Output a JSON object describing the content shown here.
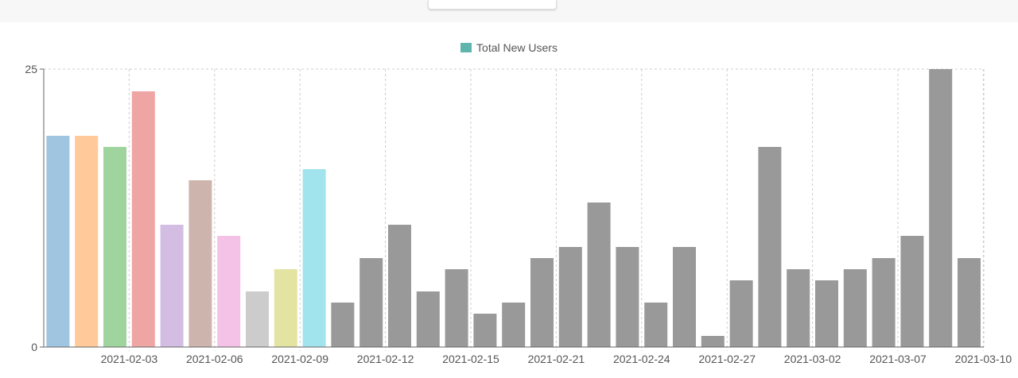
{
  "chart_data": {
    "type": "bar",
    "legend": {
      "label": "Total New Users",
      "color": "#5fb4ae",
      "placement": "top-center"
    },
    "ylim": [
      0,
      25
    ],
    "y_ticks": [
      "0",
      "25"
    ],
    "grid": true,
    "x_tick_labels": [
      "2021-02-03",
      "2021-02-06",
      "2021-02-09",
      "2021-02-12",
      "2021-02-15",
      "2021-02-21",
      "2021-02-24",
      "2021-02-27",
      "2021-03-02",
      "2021-03-07",
      "2021-03-10"
    ],
    "bars": [
      {
        "value": 19,
        "color": "#9fc5e0"
      },
      {
        "value": 19,
        "color": "#ffc999"
      },
      {
        "value": 18,
        "color": "#9fd49f"
      },
      {
        "value": 23,
        "color": "#f0a5a5"
      },
      {
        "value": 11,
        "color": "#d3bde3"
      },
      {
        "value": 15,
        "color": "#cdb5ae"
      },
      {
        "value": 10,
        "color": "#f4c2e6"
      },
      {
        "value": 5,
        "color": "#cccccc"
      },
      {
        "value": 7,
        "color": "#e4e4a2"
      },
      {
        "value": 16,
        "color": "#a1e4ed"
      },
      {
        "value": 4,
        "color": "#999999"
      },
      {
        "value": 8,
        "color": "#999999"
      },
      {
        "value": 11,
        "color": "#999999"
      },
      {
        "value": 5,
        "color": "#999999"
      },
      {
        "value": 7,
        "color": "#999999"
      },
      {
        "value": 3,
        "color": "#999999"
      },
      {
        "value": 4,
        "color": "#999999"
      },
      {
        "value": 8,
        "color": "#999999"
      },
      {
        "value": 9,
        "color": "#999999"
      },
      {
        "value": 13,
        "color": "#999999"
      },
      {
        "value": 9,
        "color": "#999999"
      },
      {
        "value": 4,
        "color": "#999999"
      },
      {
        "value": 9,
        "color": "#999999"
      },
      {
        "value": 1,
        "color": "#999999"
      },
      {
        "value": 6,
        "color": "#999999"
      },
      {
        "value": 18,
        "color": "#999999"
      },
      {
        "value": 7,
        "color": "#999999"
      },
      {
        "value": 6,
        "color": "#999999"
      },
      {
        "value": 7,
        "color": "#999999"
      },
      {
        "value": 8,
        "color": "#999999"
      },
      {
        "value": 10,
        "color": "#999999"
      },
      {
        "value": 25,
        "color": "#999999"
      },
      {
        "value": 8,
        "color": "#999999"
      }
    ]
  }
}
